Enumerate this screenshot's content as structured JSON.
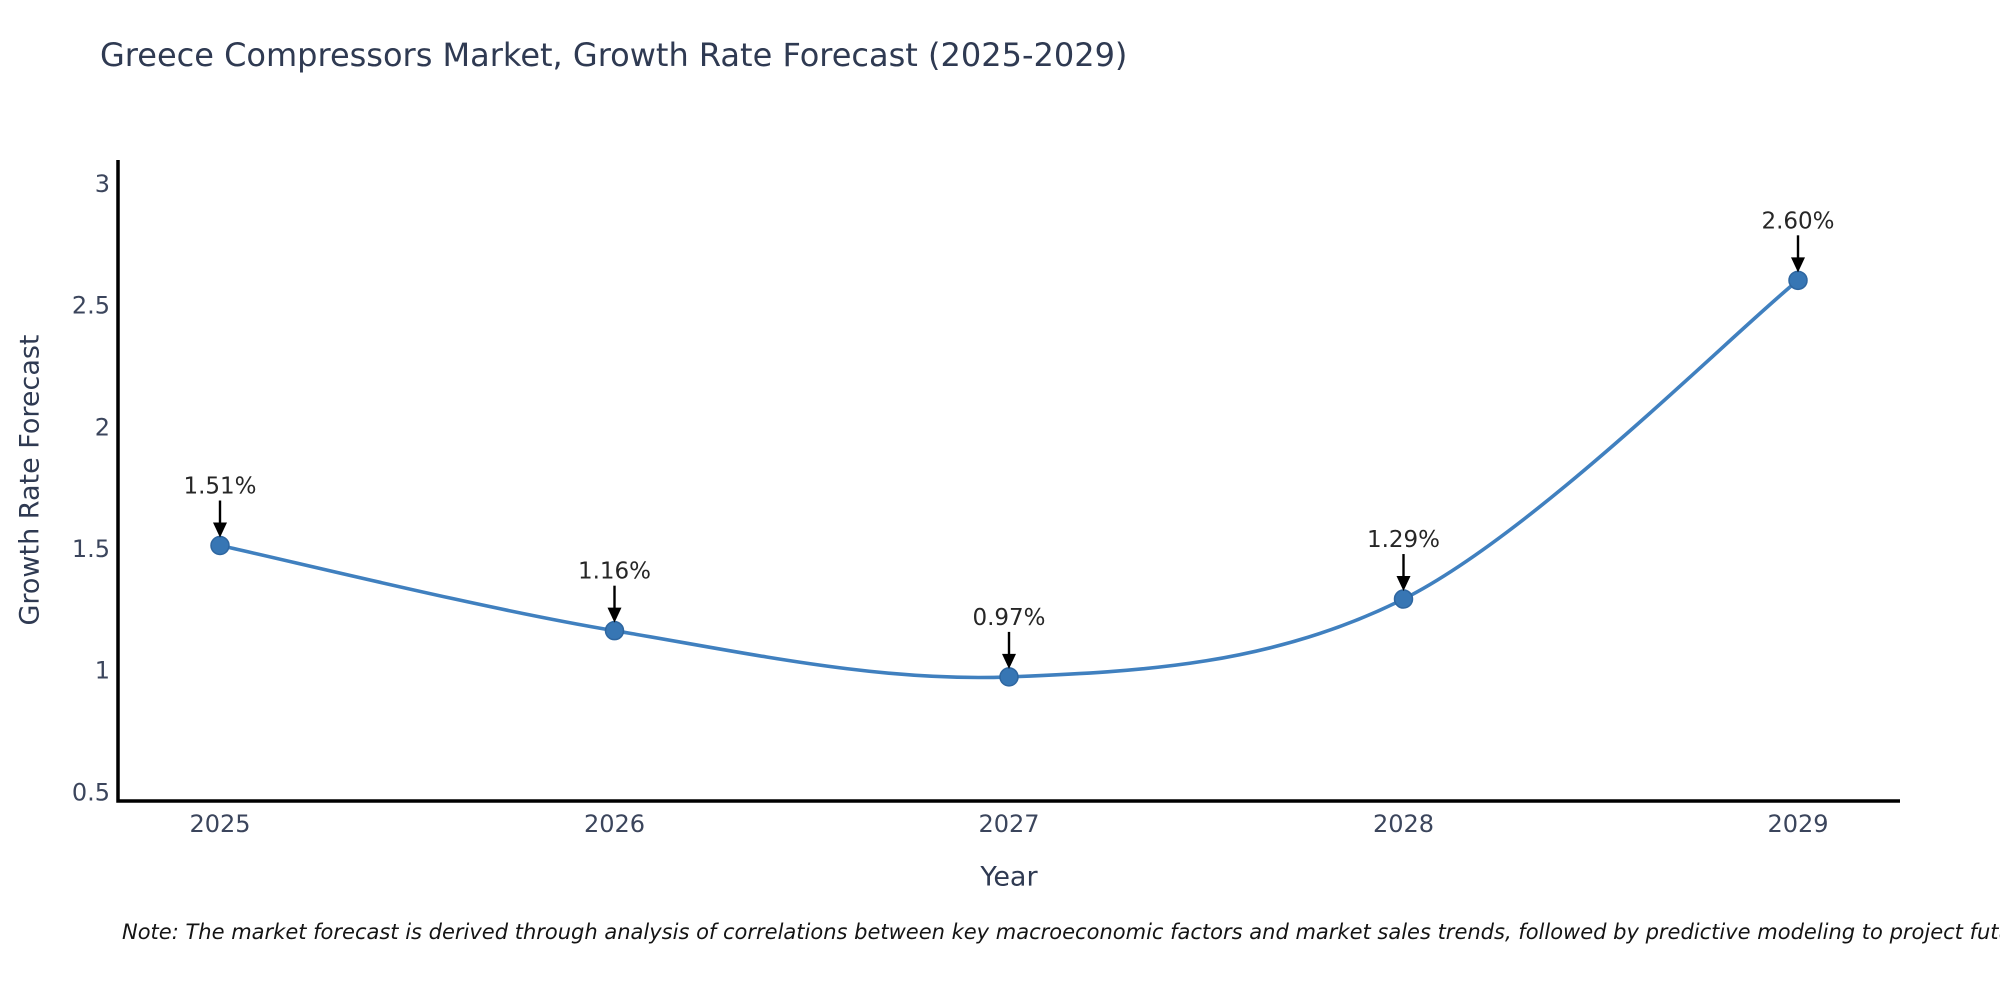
{
  "note": "Note: The market forecast is derived through analysis of correlations between key macroeconomic factors and market sales trends, followed by predictive modeling to project future sales",
  "chart_data": {
    "type": "line",
    "line_shape": "spline",
    "title": "Greece Compressors Market, Growth Rate Forecast (2025-2029)",
    "xlabel": "Year",
    "ylabel": "Growth Rate Forecast",
    "categories": [
      "2025",
      "2026",
      "2027",
      "2028",
      "2029"
    ],
    "values": [
      1.51,
      1.16,
      0.97,
      1.29,
      2.6
    ],
    "point_labels": [
      "1.51%",
      "1.16%",
      "0.97%",
      "1.29%",
      "2.60%"
    ],
    "yticks": [
      0.5,
      1,
      1.5,
      2,
      2.5,
      3
    ],
    "ylim": [
      0.5,
      3
    ],
    "grid": false,
    "legend_position": "none",
    "colors": {
      "line": "#4080bf",
      "marker_fill": "#3776b4",
      "marker_edge": "#2e66a0",
      "axis_line": "#000000",
      "title_text": "#2f3a52",
      "tick_text": "#3b455c",
      "annotation_text": "#262626",
      "arrow": "#000000",
      "background": "#ffffff"
    }
  }
}
